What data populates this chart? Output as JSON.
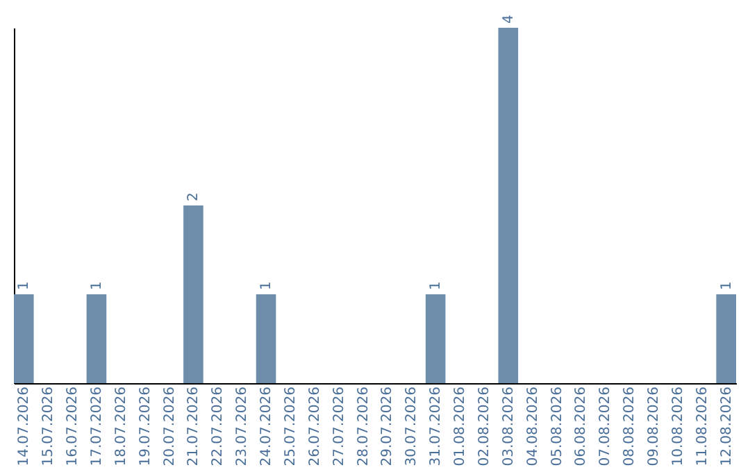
{
  "chart_data": {
    "type": "bar",
    "categories": [
      "14.07.2026",
      "15.07.2026",
      "16.07.2026",
      "17.07.2026",
      "18.07.2026",
      "19.07.2026",
      "20.07.2026",
      "21.07.2026",
      "22.07.2026",
      "23.07.2026",
      "24.07.2026",
      "25.07.2026",
      "26.07.2026",
      "27.07.2026",
      "28.07.2026",
      "29.07.2026",
      "30.07.2026",
      "31.07.2026",
      "01.08.2026",
      "02.08.2026",
      "03.08.2026",
      "04.08.2026",
      "05.08.2026",
      "06.08.2026",
      "07.08.2026",
      "08.08.2026",
      "09.08.2026",
      "10.08.2026",
      "11.08.2026",
      "12.08.2026"
    ],
    "values": [
      1,
      0,
      0,
      1,
      0,
      0,
      0,
      2,
      0,
      0,
      1,
      0,
      0,
      0,
      0,
      0,
      0,
      1,
      0,
      0,
      4,
      0,
      0,
      0,
      0,
      0,
      0,
      0,
      0,
      1
    ],
    "value_labels": [
      "1",
      null,
      null,
      "1",
      null,
      null,
      null,
      "2",
      null,
      null,
      "1",
      null,
      null,
      null,
      null,
      null,
      null,
      "1",
      null,
      null,
      "4",
      null,
      null,
      null,
      null,
      null,
      null,
      null,
      null,
      "1"
    ],
    "color": "#6d8dab",
    "tick_labels": "x",
    "grid": false
  }
}
